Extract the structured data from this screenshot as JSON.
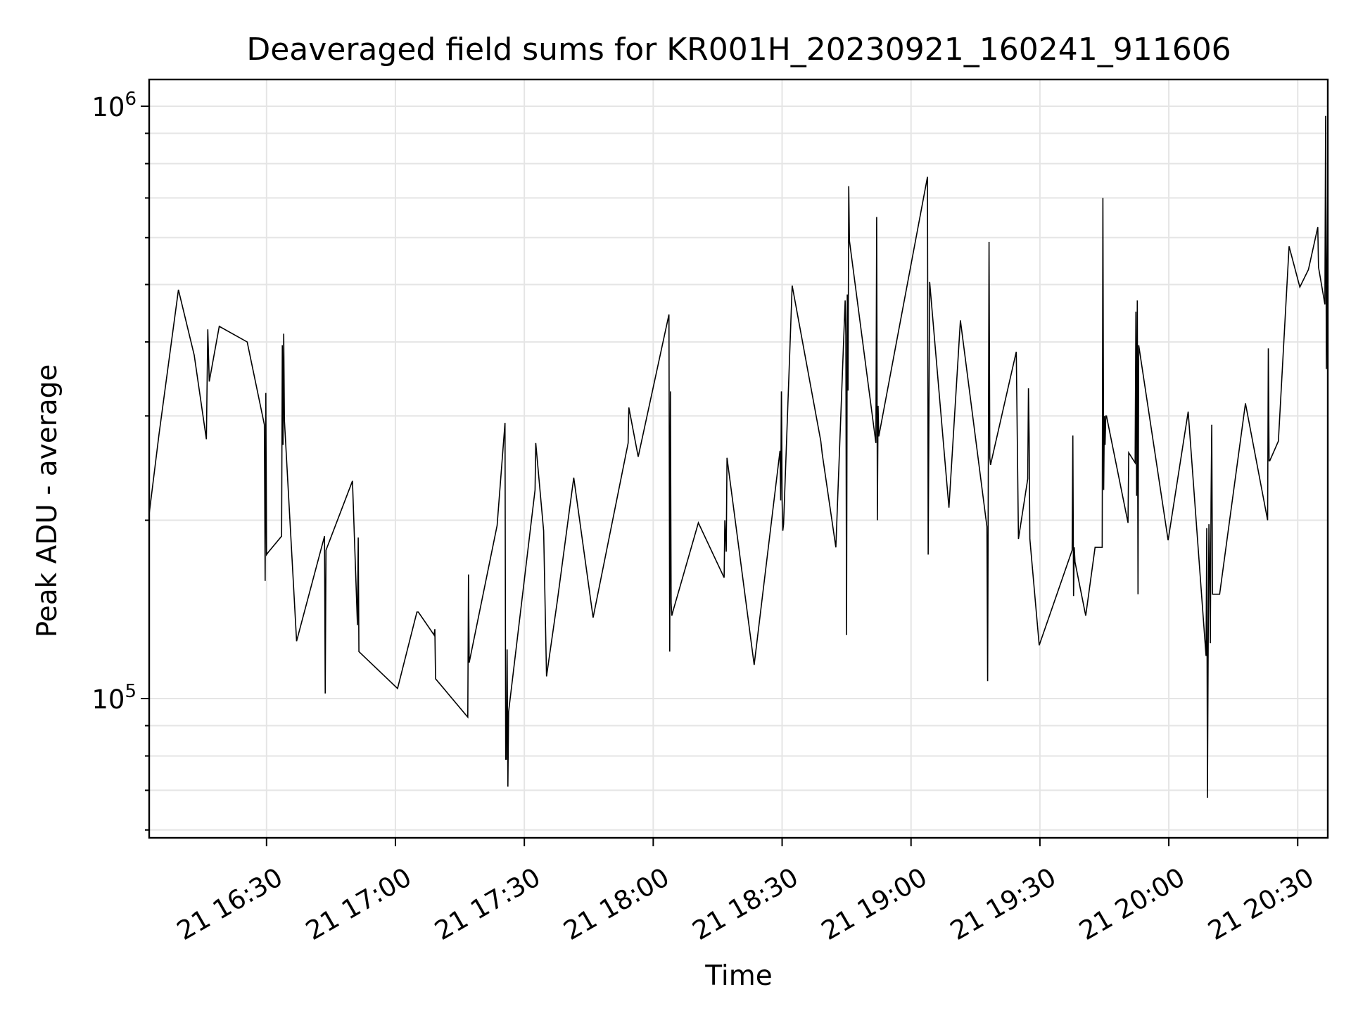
{
  "chart_data": {
    "type": "line",
    "title": "Deaveraged field sums for KR001H_20230921_160241_911606",
    "xlabel": "Time",
    "ylabel": "Peak ADU - average",
    "yscale": "log",
    "ylim": [
      60000,
      1000000
    ],
    "xlim": [
      "2023-09-21 16:02:41",
      "2023-09-21 20:37:00"
    ],
    "grid": true,
    "line_color": "#000000",
    "y_ticks": [
      {
        "value": 1000000,
        "base": "10",
        "exp": "6"
      },
      {
        "value": 100000,
        "base": "10",
        "exp": "5"
      }
    ],
    "x_ticks": [
      {
        "time": "2023-09-21 16:30",
        "label": "21 16:30"
      },
      {
        "time": "2023-09-21 17:00",
        "label": "21 17:00"
      },
      {
        "time": "2023-09-21 17:30",
        "label": "21 17:30"
      },
      {
        "time": "2023-09-21 18:00",
        "label": "21 18:00"
      },
      {
        "time": "2023-09-21 18:30",
        "label": "21 18:30"
      },
      {
        "time": "2023-09-21 19:00",
        "label": "21 19:00"
      },
      {
        "time": "2023-09-21 19:30",
        "label": "21 19:30"
      },
      {
        "time": "2023-09-21 20:00",
        "label": "21 20:00"
      },
      {
        "time": "2023-09-21 20:30",
        "label": "21 20:30"
      }
    ],
    "series": [
      {
        "x": [
          "2023-09-21 16:02:41",
          "2023-09-21 16:05:00",
          "2023-09-21 16:09:30",
          "2023-09-21 16:13:10",
          "2023-09-21 16:16:00",
          "2023-09-21 16:16:20",
          "2023-09-21 16:16:40",
          "2023-09-21 16:19:00",
          "2023-09-21 16:25:30",
          "2023-09-21 16:29:30",
          "2023-09-21 16:29:40",
          "2023-09-21 16:29:50",
          "2023-09-21 16:30:00",
          "2023-09-21 16:30:30",
          "2023-09-21 16:33:30",
          "2023-09-21 16:33:40",
          "2023-09-21 16:33:50",
          "2023-09-21 16:34:00",
          "2023-09-21 16:34:10",
          "2023-09-21 16:37:00",
          "2023-09-21 16:43:30",
          "2023-09-21 16:43:40",
          "2023-09-21 16:43:50",
          "2023-09-21 16:50:00",
          "2023-09-21 16:51:10",
          "2023-09-21 16:51:20",
          "2023-09-21 16:51:30",
          "2023-09-21 17:00:30",
          "2023-09-21 17:05:00",
          "2023-09-21 17:05:20",
          "2023-09-21 17:09:00",
          "2023-09-21 17:09:10",
          "2023-09-21 17:09:20",
          "2023-09-21 17:16:50",
          "2023-09-21 17:17:00",
          "2023-09-21 17:17:10",
          "2023-09-21 17:23:40",
          "2023-09-21 17:25:30",
          "2023-09-21 17:25:40",
          "2023-09-21 17:25:50",
          "2023-09-21 17:26:00",
          "2023-09-21 17:26:10",
          "2023-09-21 17:26:20",
          "2023-09-21 17:32:30",
          "2023-09-21 17:32:40",
          "2023-09-21 17:34:30",
          "2023-09-21 17:35:10",
          "2023-09-21 17:37:40",
          "2023-09-21 17:41:30",
          "2023-09-21 17:46:00",
          "2023-09-21 17:54:10",
          "2023-09-21 17:54:20",
          "2023-09-21 17:56:30",
          "2023-09-21 18:03:40",
          "2023-09-21 18:03:50",
          "2023-09-21 18:04:00",
          "2023-09-21 18:04:10",
          "2023-09-21 18:04:20",
          "2023-09-21 18:04:40",
          "2023-09-21 18:10:30",
          "2023-09-21 18:16:30",
          "2023-09-21 18:16:40",
          "2023-09-21 18:17:00",
          "2023-09-21 18:17:10",
          "2023-09-21 18:23:30",
          "2023-09-21 18:29:30",
          "2023-09-21 18:29:40",
          "2023-09-21 18:29:50",
          "2023-09-21 18:30:00",
          "2023-09-21 18:30:10",
          "2023-09-21 18:30:20",
          "2023-09-21 18:32:20",
          "2023-09-21 18:39:00",
          "2023-09-21 18:39:20",
          "2023-09-21 18:42:30",
          "2023-09-21 18:44:40",
          "2023-09-21 18:44:50",
          "2023-09-21 18:45:00",
          "2023-09-21 18:45:10",
          "2023-09-21 18:45:20",
          "2023-09-21 18:45:30",
          "2023-09-21 18:45:40",
          "2023-09-21 18:51:50",
          "2023-09-21 18:52:00",
          "2023-09-21 18:52:10",
          "2023-09-21 18:52:20",
          "2023-09-21 18:52:30",
          "2023-09-21 19:03:50",
          "2023-09-21 19:04:00",
          "2023-09-21 19:04:20",
          "2023-09-21 19:08:50",
          "2023-09-21 19:11:30",
          "2023-09-21 19:17:40",
          "2023-09-21 19:17:50",
          "2023-09-21 19:18:00",
          "2023-09-21 19:18:10",
          "2023-09-21 19:18:20",
          "2023-09-21 19:18:30",
          "2023-09-21 19:24:30",
          "2023-09-21 19:25:00",
          "2023-09-21 19:27:10",
          "2023-09-21 19:27:20",
          "2023-09-21 19:27:30",
          "2023-09-21 19:27:40",
          "2023-09-21 19:29:50",
          "2023-09-21 19:37:30",
          "2023-09-21 19:37:40",
          "2023-09-21 19:37:50",
          "2023-09-21 19:38:00",
          "2023-09-21 19:38:10",
          "2023-09-21 19:40:40",
          "2023-09-21 19:42:50",
          "2023-09-21 19:44:30",
          "2023-09-21 19:44:40",
          "2023-09-21 19:44:50",
          "2023-09-21 19:45:00",
          "2023-09-21 19:45:10",
          "2023-09-21 19:45:20",
          "2023-09-21 19:45:30",
          "2023-09-21 19:50:30",
          "2023-09-21 19:50:40",
          "2023-09-21 19:52:10",
          "2023-09-21 19:52:20",
          "2023-09-21 19:52:30",
          "2023-09-21 19:52:40",
          "2023-09-21 19:52:50",
          "2023-09-21 19:53:00",
          "2023-09-21 19:59:50",
          "2023-09-21 20:04:30",
          "2023-09-21 20:08:40",
          "2023-09-21 20:08:50",
          "2023-09-21 20:09:00",
          "2023-09-21 20:09:10",
          "2023-09-21 20:09:20",
          "2023-09-21 20:09:30",
          "2023-09-21 20:09:40",
          "2023-09-21 20:09:50",
          "2023-09-21 20:10:00",
          "2023-09-21 20:10:10",
          "2023-09-21 20:11:50",
          "2023-09-21 20:17:50",
          "2023-09-21 20:23:00",
          "2023-09-21 20:23:10",
          "2023-09-21 20:23:20",
          "2023-09-21 20:23:30",
          "2023-09-21 20:25:30",
          "2023-09-21 20:28:00",
          "2023-09-21 20:30:30",
          "2023-09-21 20:32:30",
          "2023-09-21 20:34:40",
          "2023-09-21 20:34:50",
          "2023-09-21 20:36:20",
          "2023-09-21 20:36:30",
          "2023-09-21 20:36:40",
          "2023-09-21 20:37:00"
        ],
        "y": [
          205000,
          280000,
          490000,
          380000,
          274000,
          420000,
          343000,
          425000,
          400000,
          290000,
          158000,
          328000,
          175000,
          177000,
          188000,
          395000,
          268000,
          413000,
          295000,
          125000,
          188000,
          102000,
          178000,
          233000,
          133000,
          187000,
          120000,
          104000,
          140000,
          140000,
          128000,
          131000,
          108000,
          93000,
          162000,
          115000,
          196000,
          292000,
          79000,
          79000,
          121000,
          71000,
          95000,
          225000,
          270000,
          192000,
          109000,
          146000,
          236000,
          137000,
          270000,
          310000,
          256000,
          445000,
          120000,
          330000,
          145000,
          138000,
          141000,
          198000,
          160000,
          200000,
          177000,
          255000,
          114000,
          262000,
          216000,
          330000,
          216000,
          192000,
          197000,
          498000,
          272000,
          259000,
          180000,
          470000,
          410000,
          128000,
          481000,
          331000,
          733000,
          593000,
          270000,
          650000,
          200000,
          312000,
          277000,
          760000,
          175000,
          505000,
          210000,
          435000,
          195000,
          107000,
          250000,
          590000,
          255000,
          248000,
          385000,
          186000,
          235000,
          334000,
          276000,
          186000,
          123000,
          178000,
          278000,
          149000,
          180000,
          170000,
          138000,
          180000,
          180000,
          700000,
          225000,
          300000,
          268000,
          300000,
          300000,
          198000,
          260000,
          250000,
          450000,
          220000,
          470000,
          150000,
          395000,
          185000,
          305000,
          118000,
          194000,
          68000,
          120000,
          197000,
          167000,
          124000,
          215000,
          290000,
          150000,
          150000,
          315000,
          200000,
          390000,
          252000,
          252000,
          272000,
          580000,
          495000,
          530000,
          625000,
          535000,
          463000,
          963000,
          360000,
          760000
        ],
        "color": "#000000"
      }
    ]
  }
}
